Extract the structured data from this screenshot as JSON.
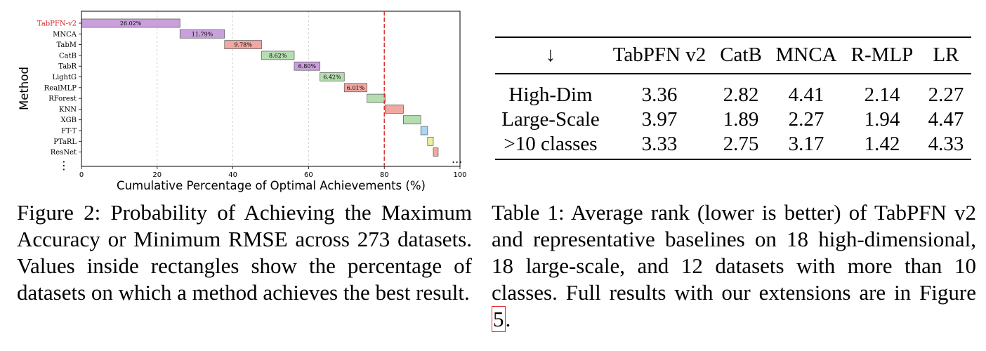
{
  "chart_data": {
    "type": "bar",
    "orientation": "horizontal-stacked-waterfall",
    "categories": [
      "TabPFN-v2",
      "MNCA",
      "TabM",
      "CatB",
      "TabR",
      "LightG",
      "RealMLP",
      "RForest",
      "KNN",
      "XGB",
      "FT-T",
      "PTaRL",
      "ResNet"
    ],
    "values": [
      26.02,
      11.79,
      9.78,
      8.62,
      6.8,
      6.42,
      6.01,
      4.8,
      4.8,
      4.6,
      1.8,
      1.5,
      1.3
    ],
    "data_labels": [
      "26.02%",
      "11.79%",
      "9.78%",
      "8.62%",
      "6.80%",
      "6.42%",
      "6.01%",
      "",
      "",
      "",
      "",
      "",
      ""
    ],
    "colors": [
      "#c9a0dc",
      "#c9a0dc",
      "#f0a8a0",
      "#b5ddb0",
      "#c9a0dc",
      "#b5ddb0",
      "#f0a8a0",
      "#b5ddb0",
      "#f0a8a0",
      "#b5ddb0",
      "#a8d8f0",
      "#eef0a0",
      "#f0a8a0"
    ],
    "highlight_category": "TabPFN-v2",
    "highlight_color": "#d62728",
    "threshold_line": 80,
    "threshold_color": "#d62728",
    "xlabel": "Cumulative Percentage of Optimal Achievements (%)",
    "ylabel": "Method",
    "xlim": [
      0,
      100
    ],
    "xticks": [
      "0",
      "20",
      "40",
      "60",
      "80",
      "100"
    ],
    "grid": "vertical-dashed",
    "continuation_x": "...",
    "continuation_y": "⋮"
  },
  "figure_caption": "Figure 2: Probability of Achieving the Maximum Accuracy or Minimum RMSE across 273 datasets. Values inside rectangles show the percentage of datasets on which a method achieves the best result.",
  "table": {
    "headers": [
      "↓",
      "TabPFN v2",
      "CatB",
      "MNCA",
      "R-MLP",
      "LR"
    ],
    "rows": [
      [
        "High-Dim",
        "3.36",
        "2.82",
        "4.41",
        "2.14",
        "2.27"
      ],
      [
        "Large-Scale",
        "3.97",
        "1.89",
        "2.27",
        "1.94",
        "4.47"
      ],
      [
        ">10 classes",
        "3.33",
        "2.75",
        "3.17",
        "1.42",
        "4.33"
      ]
    ]
  },
  "table_caption": {
    "text": "Table 1:  Average rank (lower is better) of TabPFN v2 and representative baselines on 18 high-dimensional, 18 large-scale, and 12 datasets with more than 10 classes. Full results with our extensions are in Figure ",
    "ref": "5",
    "end": "."
  }
}
